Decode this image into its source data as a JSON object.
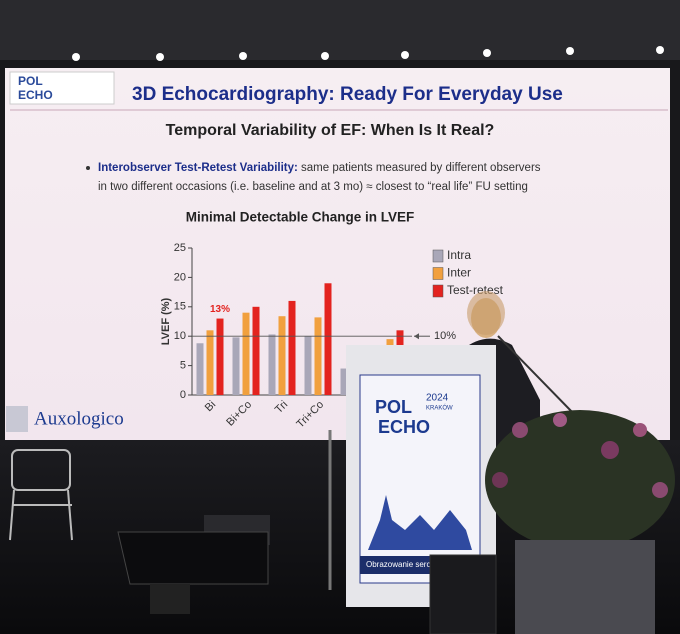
{
  "slide": {
    "logo_top": "POL",
    "logo_bottom": "ECHO",
    "title": "3D Echocardiography: Ready For Everyday Use",
    "subtitle": "Temporal Variability of EF: When Is It Real?",
    "bullet": {
      "lead": "Interobserver Test-Retest Variability:",
      "lines": [
        " same patients measured by different observers",
        "in two different occasions (i.e. baseline and at 3 mo) ≈ closest to “real life” FU setting"
      ]
    },
    "sponsor": "Auxologico"
  },
  "chart_data": {
    "type": "bar",
    "title": "Minimal Detectable Change in LVEF",
    "y_label": "LVEF (%)",
    "categories": [
      "Bi",
      "Bi+Co",
      "Tri",
      "Tri+Co",
      null,
      null
    ],
    "series": [
      {
        "name": "Intra",
        "color": "#a9a7b8",
        "values": [
          8.8,
          9.8,
          10.3,
          10,
          4.5,
          null
        ]
      },
      {
        "name": "Inter",
        "color": "#f1a03e",
        "values": [
          11,
          14,
          13.4,
          13.2,
          null,
          9.5
        ]
      },
      {
        "name": "Test-retest",
        "color": "#e3231f",
        "values": [
          13,
          15,
          16,
          19,
          null,
          11
        ],
        "value_labels": [
          "13%",
          null,
          null,
          null,
          null,
          null
        ]
      }
    ],
    "ylim": [
      0,
      25
    ],
    "yticks": [
      0,
      5,
      10,
      15,
      20,
      25
    ],
    "reference_line": {
      "value": 10,
      "label": "10%"
    }
  },
  "podium": {
    "top": "POL",
    "year": "2024",
    "city": "KRAKÓW",
    "bottom": "ECHO",
    "footer": "Obrazowanie serca -"
  }
}
